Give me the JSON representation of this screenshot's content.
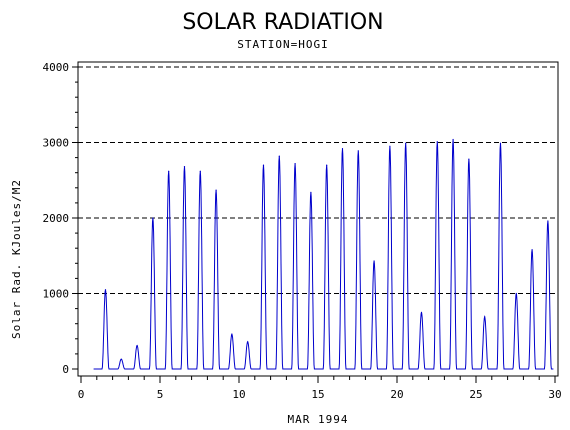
{
  "chart_data": {
    "type": "line",
    "title": "SOLAR RADIATION",
    "subtitle": "STATION=HOGI",
    "xlabel": "MAR 1994",
    "ylabel": "Solar Rad. KJoules/M2",
    "xlim": [
      0,
      30
    ],
    "ylim": [
      0,
      4000
    ],
    "x_ticks": [
      0,
      5,
      10,
      15,
      20,
      25,
      30
    ],
    "y_ticks": [
      0,
      1000,
      2000,
      3000,
      4000
    ],
    "grid": "horizontal-dashed",
    "series_color": "#0000cc",
    "daily_peaks": [
      {
        "day": 1,
        "peak": 1050
      },
      {
        "day": 2,
        "peak": 130
      },
      {
        "day": 3,
        "peak": 310
      },
      {
        "day": 4,
        "peak": 2000
      },
      {
        "day": 5,
        "peak": 2620
      },
      {
        "day": 6,
        "peak": 2680
      },
      {
        "day": 7,
        "peak": 2620
      },
      {
        "day": 8,
        "peak": 2370
      },
      {
        "day": 9,
        "peak": 460
      },
      {
        "day": 10,
        "peak": 360
      },
      {
        "day": 11,
        "peak": 2700
      },
      {
        "day": 12,
        "peak": 2820
      },
      {
        "day": 13,
        "peak": 2720
      },
      {
        "day": 14,
        "peak": 2340
      },
      {
        "day": 15,
        "peak": 2700
      },
      {
        "day": 16,
        "peak": 2920
      },
      {
        "day": 17,
        "peak": 2890
      },
      {
        "day": 18,
        "peak": 1430
      },
      {
        "day": 19,
        "peak": 2950
      },
      {
        "day": 20,
        "peak": 2990
      },
      {
        "day": 21,
        "peak": 750
      },
      {
        "day": 22,
        "peak": 3010
      },
      {
        "day": 23,
        "peak": 3040
      },
      {
        "day": 24,
        "peak": 2780
      },
      {
        "day": 25,
        "peak": 690
      },
      {
        "day": 26,
        "peak": 2990
      },
      {
        "day": 27,
        "peak": 1000
      },
      {
        "day": 28,
        "peak": 1580
      },
      {
        "day": 29,
        "peak": 1960
      }
    ]
  }
}
